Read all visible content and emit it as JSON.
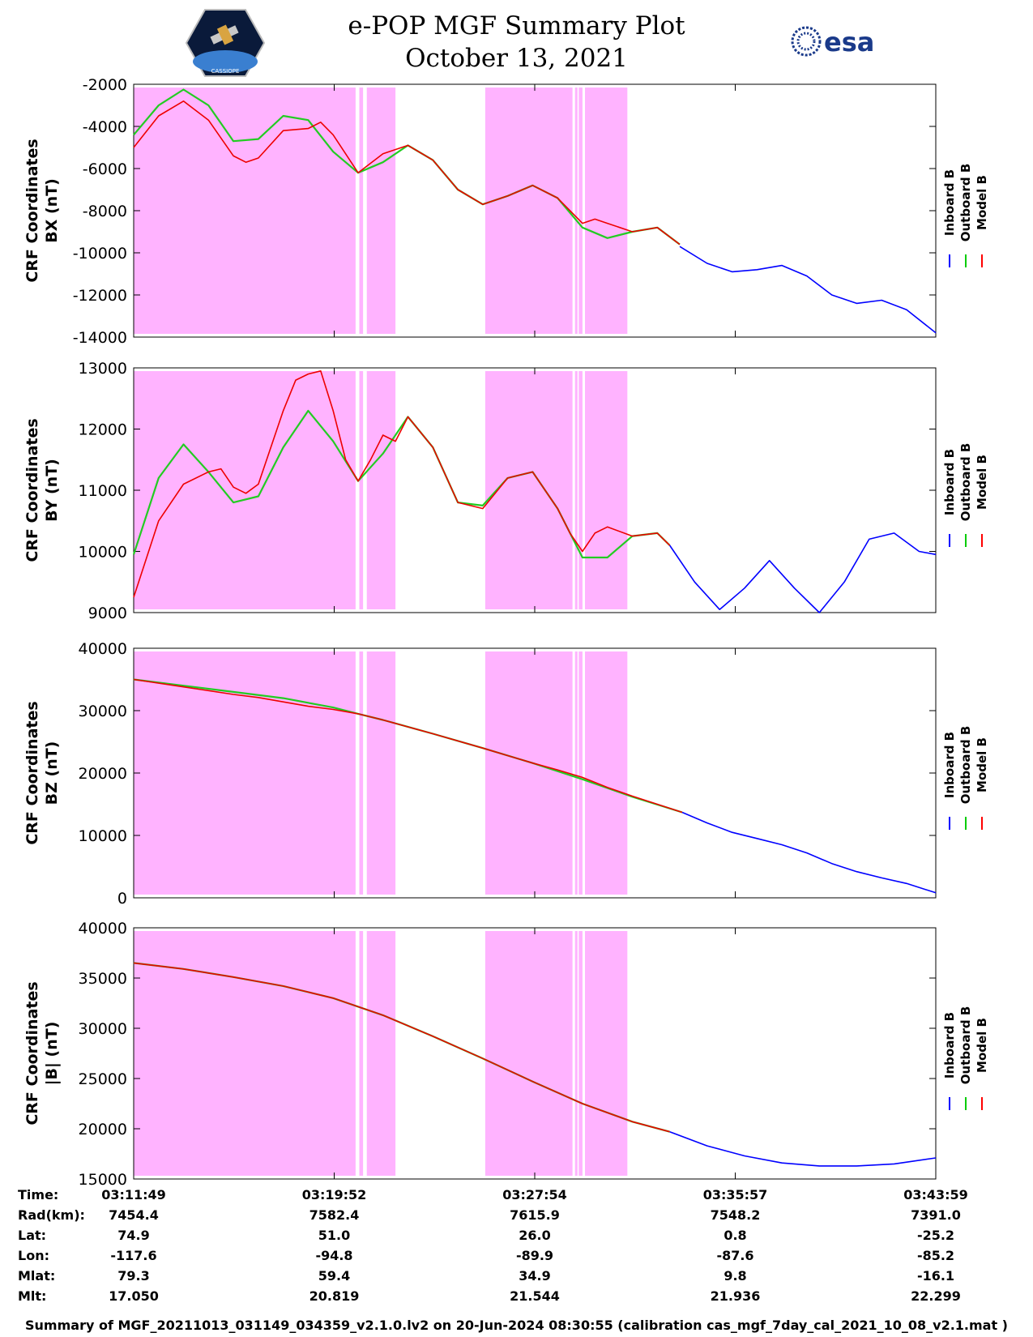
{
  "title_line1": "e-POP MGF Summary Plot",
  "title_line2": "October 13, 2021",
  "logo_left_text": "CASSIOPE",
  "logo_right_text": "esa",
  "legend": {
    "labels": [
      "Inboard B",
      "Outboard B",
      "Model B"
    ],
    "colors": [
      "#0000ff",
      "#00cc00",
      "#ff0000"
    ]
  },
  "colors": {
    "shade": "#ffb3ff",
    "inboard": "#0000ff",
    "outboard": "#22cc22",
    "model": "#ee0000"
  },
  "time_ticks": [
    "03:11:49",
    "03:19:52",
    "03:27:54",
    "03:35:57",
    "03:43:59"
  ],
  "table": {
    "rows": [
      {
        "label": "Time:",
        "values": [
          "03:11:49",
          "03:19:52",
          "03:27:54",
          "03:35:57",
          "03:43:59"
        ]
      },
      {
        "label": "Rad(km):",
        "values": [
          "7454.4",
          "7582.4",
          "7615.9",
          "7548.2",
          "7391.0"
        ]
      },
      {
        "label": "Lat:",
        "values": [
          "74.9",
          "51.0",
          "26.0",
          "0.8",
          "-25.2"
        ]
      },
      {
        "label": "Lon:",
        "values": [
          "-117.6",
          "-94.8",
          "-89.9",
          "-87.6",
          "-85.2"
        ]
      },
      {
        "label": "Mlat:",
        "values": [
          "79.3",
          "59.4",
          "34.9",
          "9.8",
          "-16.1"
        ]
      },
      {
        "label": "Mlt:",
        "values": [
          "17.050",
          "20.819",
          "21.544",
          "21.936",
          "22.299"
        ]
      }
    ]
  },
  "footer": "Summary of MGF_20211013_031149_034359_v2.1.0.lv2 on 20-Jun-2024 08:30:55 (calibration cas_mgf_7day_cal_2021_10_08_v2.1.mat )",
  "chart_data": [
    {
      "type": "line",
      "ylabel_line1": "CRF Coordinates",
      "ylabel_line2": "BX (nT)",
      "ylim": [
        -14000,
        -2000
      ],
      "yticks": [
        -2000,
        -4000,
        -6000,
        -8000,
        -10000,
        -12000,
        -14000
      ],
      "x_range_minutes": [
        0,
        32.17
      ],
      "shaded_intervals_minutes": [
        [
          0,
          8.9
        ],
        [
          9.05,
          9.2
        ],
        [
          9.35,
          10.5
        ],
        [
          14.1,
          17.6
        ],
        [
          17.7,
          17.8
        ],
        [
          17.85,
          18.0
        ],
        [
          18.1,
          19.8
        ]
      ],
      "series": [
        {
          "name": "Inboard B",
          "x": [
            21.9,
            23,
            24,
            25,
            26,
            27,
            28,
            29,
            30,
            31,
            32.17
          ],
          "y": [
            -9700,
            -10500,
            -10900,
            -10800,
            -10600,
            -11100,
            -12000,
            -12400,
            -12250,
            -12700,
            -13800
          ]
        },
        {
          "name": "Outboard B",
          "x": [
            0,
            1,
            2,
            3,
            4,
            5,
            6,
            7,
            8,
            9,
            10,
            11,
            12,
            13,
            14,
            15,
            16,
            17,
            18,
            19,
            20,
            21,
            21.9
          ],
          "y": [
            -4400,
            -3000,
            -2250,
            -3000,
            -4700,
            -4600,
            -3500,
            -3700,
            -5200,
            -6200,
            -5700,
            -4900,
            -5600,
            -7000,
            -7700,
            -7300,
            -6800,
            -7400,
            -8800,
            -9300,
            -9000,
            -8800,
            -9600
          ]
        },
        {
          "name": "Model B",
          "x": [
            0,
            1,
            2,
            3,
            4,
            4.5,
            5,
            6,
            7,
            7.5,
            8,
            9,
            10,
            11,
            12,
            13,
            14,
            15,
            16,
            17,
            18,
            18.5,
            19,
            20,
            21,
            21.9
          ],
          "y": [
            -5000,
            -3500,
            -2800,
            -3700,
            -5400,
            -5700,
            -5500,
            -4200,
            -4100,
            -3800,
            -4400,
            -6200,
            -5300,
            -4900,
            -5600,
            -7000,
            -7700,
            -7300,
            -6800,
            -7400,
            -8600,
            -8400,
            -8600,
            -9000,
            -8800,
            -9600
          ]
        }
      ]
    },
    {
      "type": "line",
      "ylabel_line1": "CRF Coordinates",
      "ylabel_line2": "BY (nT)",
      "ylim": [
        9000,
        13000
      ],
      "yticks": [
        13000,
        12000,
        11000,
        10000,
        9000
      ],
      "x_range_minutes": [
        0,
        32.17
      ],
      "shaded_intervals_minutes": [
        [
          0,
          8.9
        ],
        [
          9.05,
          9.2
        ],
        [
          9.35,
          10.5
        ],
        [
          14.1,
          17.6
        ],
        [
          17.7,
          17.8
        ],
        [
          17.85,
          18.0
        ],
        [
          18.1,
          19.8
        ]
      ],
      "series": [
        {
          "name": "Inboard B",
          "x": [
            21.5,
            22.5,
            23.5,
            24.5,
            25.5,
            26.5,
            27.5,
            28.5,
            29.5,
            30.5,
            31.5,
            32.17
          ],
          "y": [
            10100,
            9500,
            9050,
            9400,
            9850,
            9400,
            9000,
            9500,
            10200,
            10300,
            10000,
            9950
          ]
        },
        {
          "name": "Outboard B",
          "x": [
            0,
            1,
            2,
            3,
            4,
            5,
            6,
            7,
            8,
            9,
            10,
            11,
            12,
            13,
            14,
            15,
            16,
            17,
            18,
            19,
            20,
            21,
            21.5
          ],
          "y": [
            9950,
            11200,
            11750,
            11300,
            10800,
            10900,
            11700,
            12300,
            11800,
            11150,
            11600,
            12200,
            11700,
            10800,
            10750,
            11200,
            11300,
            10700,
            9900,
            9900,
            10250,
            10300,
            10100
          ]
        },
        {
          "name": "Model B",
          "x": [
            0,
            1,
            2,
            3,
            3.5,
            4,
            4.5,
            5,
            6,
            6.5,
            7,
            7.5,
            8,
            8.5,
            9,
            9.5,
            10,
            10.5,
            11,
            12,
            13,
            14,
            15,
            16,
            17,
            17.5,
            18,
            18.5,
            19,
            20,
            21,
            21.5
          ],
          "y": [
            9250,
            10500,
            11100,
            11300,
            11350,
            11050,
            10950,
            11100,
            12300,
            12800,
            12900,
            12950,
            12300,
            11500,
            11150,
            11500,
            11900,
            11800,
            12200,
            11700,
            10800,
            10700,
            11200,
            11300,
            10700,
            10300,
            10000,
            10300,
            10400,
            10250,
            10300,
            10100
          ]
        }
      ]
    },
    {
      "type": "line",
      "ylabel_line1": "CRF Coordinates",
      "ylabel_line2": "BZ (nT)",
      "ylim": [
        0,
        40000
      ],
      "yticks": [
        40000,
        30000,
        20000,
        10000,
        0
      ],
      "x_range_minutes": [
        0,
        32.17
      ],
      "shaded_intervals_minutes": [
        [
          0,
          8.9
        ],
        [
          9.05,
          9.2
        ],
        [
          9.35,
          10.5
        ],
        [
          14.1,
          17.6
        ],
        [
          17.7,
          17.8
        ],
        [
          17.85,
          18.0
        ],
        [
          18.1,
          19.8
        ]
      ],
      "series": [
        {
          "name": "Inboard B",
          "x": [
            22,
            23,
            24,
            25,
            26,
            27,
            28,
            29,
            30,
            31,
            32.17
          ],
          "y": [
            13700,
            12000,
            10500,
            9500,
            8500,
            7200,
            5500,
            4200,
            3200,
            2300,
            800
          ]
        },
        {
          "name": "Outboard B",
          "x": [
            0,
            2,
            4,
            6,
            8,
            9,
            10,
            12,
            14,
            16,
            18,
            20,
            22
          ],
          "y": [
            35000,
            34000,
            33000,
            32000,
            30500,
            29500,
            28500,
            26300,
            24000,
            21600,
            19000,
            16200,
            13700
          ]
        },
        {
          "name": "Model B",
          "x": [
            0,
            2,
            4,
            5,
            6,
            7,
            8,
            9,
            10,
            12,
            14,
            16,
            17,
            18,
            19,
            20,
            22
          ],
          "y": [
            35000,
            33800,
            32600,
            32100,
            31400,
            30700,
            30200,
            29500,
            28500,
            26300,
            24000,
            21600,
            20500,
            19300,
            17700,
            16300,
            13700
          ]
        }
      ]
    },
    {
      "type": "line",
      "ylabel_line1": "CRF Coordinates",
      "ylabel_line2": "|B| (nT)",
      "ylim": [
        15000,
        40000
      ],
      "yticks": [
        40000,
        35000,
        30000,
        25000,
        20000,
        15000
      ],
      "x_range_minutes": [
        0,
        32.17
      ],
      "shaded_intervals_minutes": [
        [
          0,
          8.9
        ],
        [
          9.05,
          9.2
        ],
        [
          9.35,
          10.5
        ],
        [
          14.1,
          17.6
        ],
        [
          17.7,
          17.8
        ],
        [
          17.85,
          18.0
        ],
        [
          18.1,
          19.8
        ]
      ],
      "series": [
        {
          "name": "Inboard B",
          "x": [
            21.5,
            23,
            24.5,
            26,
            27.5,
            29,
            30.5,
            32.17
          ],
          "y": [
            19700,
            18300,
            17300,
            16600,
            16300,
            16300,
            16500,
            17100
          ]
        },
        {
          "name": "Outboard B",
          "x": [
            0,
            2,
            4,
            6,
            8,
            10,
            12,
            14,
            16,
            18,
            20,
            21.5
          ],
          "y": [
            36500,
            35900,
            35100,
            34200,
            33000,
            31300,
            29200,
            27000,
            24700,
            22500,
            20700,
            19700
          ]
        },
        {
          "name": "Model B",
          "x": [
            0,
            2,
            4,
            6,
            8,
            10,
            12,
            14,
            16,
            18,
            20,
            21.5
          ],
          "y": [
            36500,
            35900,
            35100,
            34200,
            33000,
            31300,
            29200,
            27000,
            24700,
            22500,
            20700,
            19700
          ]
        }
      ]
    }
  ]
}
